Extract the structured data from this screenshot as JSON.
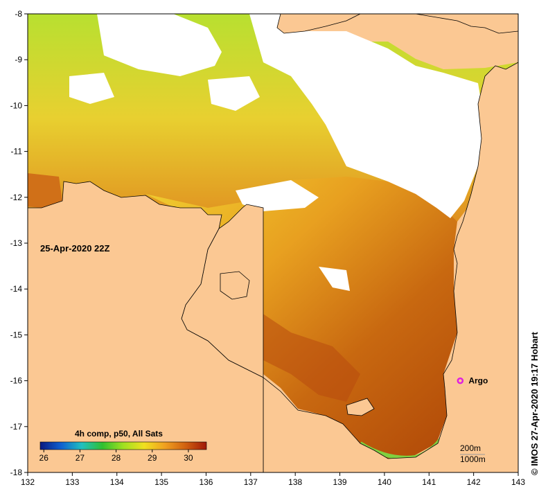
{
  "map": {
    "timestamp": "25-Apr-2020 22Z",
    "x_ticks": [
      "132",
      "133",
      "134",
      "135",
      "136",
      "137",
      "138",
      "139",
      "140",
      "141",
      "142",
      "143"
    ],
    "y_ticks": [
      "-8",
      "-9",
      "-10",
      "-11",
      "-12",
      "-13",
      "-14",
      "-15",
      "-16",
      "-17",
      "-18"
    ],
    "x_range": [
      132,
      143
    ],
    "y_range": [
      -18,
      -8
    ],
    "argo": {
      "label": "Argo",
      "lon": 141.7,
      "lat": -16.0,
      "color": "#e020e0"
    },
    "colorbar": {
      "title": "4h comp, p50, All Sats",
      "ticks": [
        "26",
        "27",
        "28",
        "29",
        "30"
      ],
      "range": [
        25.9,
        30.5
      ],
      "colors": [
        "#0a1a80",
        "#1060d0",
        "#20c0c0",
        "#30c030",
        "#a0e020",
        "#f0e020",
        "#f0a020",
        "#d06010",
        "#a01808"
      ]
    },
    "contours": [
      "200m",
      "1000m"
    ],
    "credit": "© IMOS 27-Apr-2020 19:17 Hobart",
    "colors": {
      "land": "#fbc893",
      "cloud": "#ffffff",
      "frame": "#000000"
    }
  }
}
